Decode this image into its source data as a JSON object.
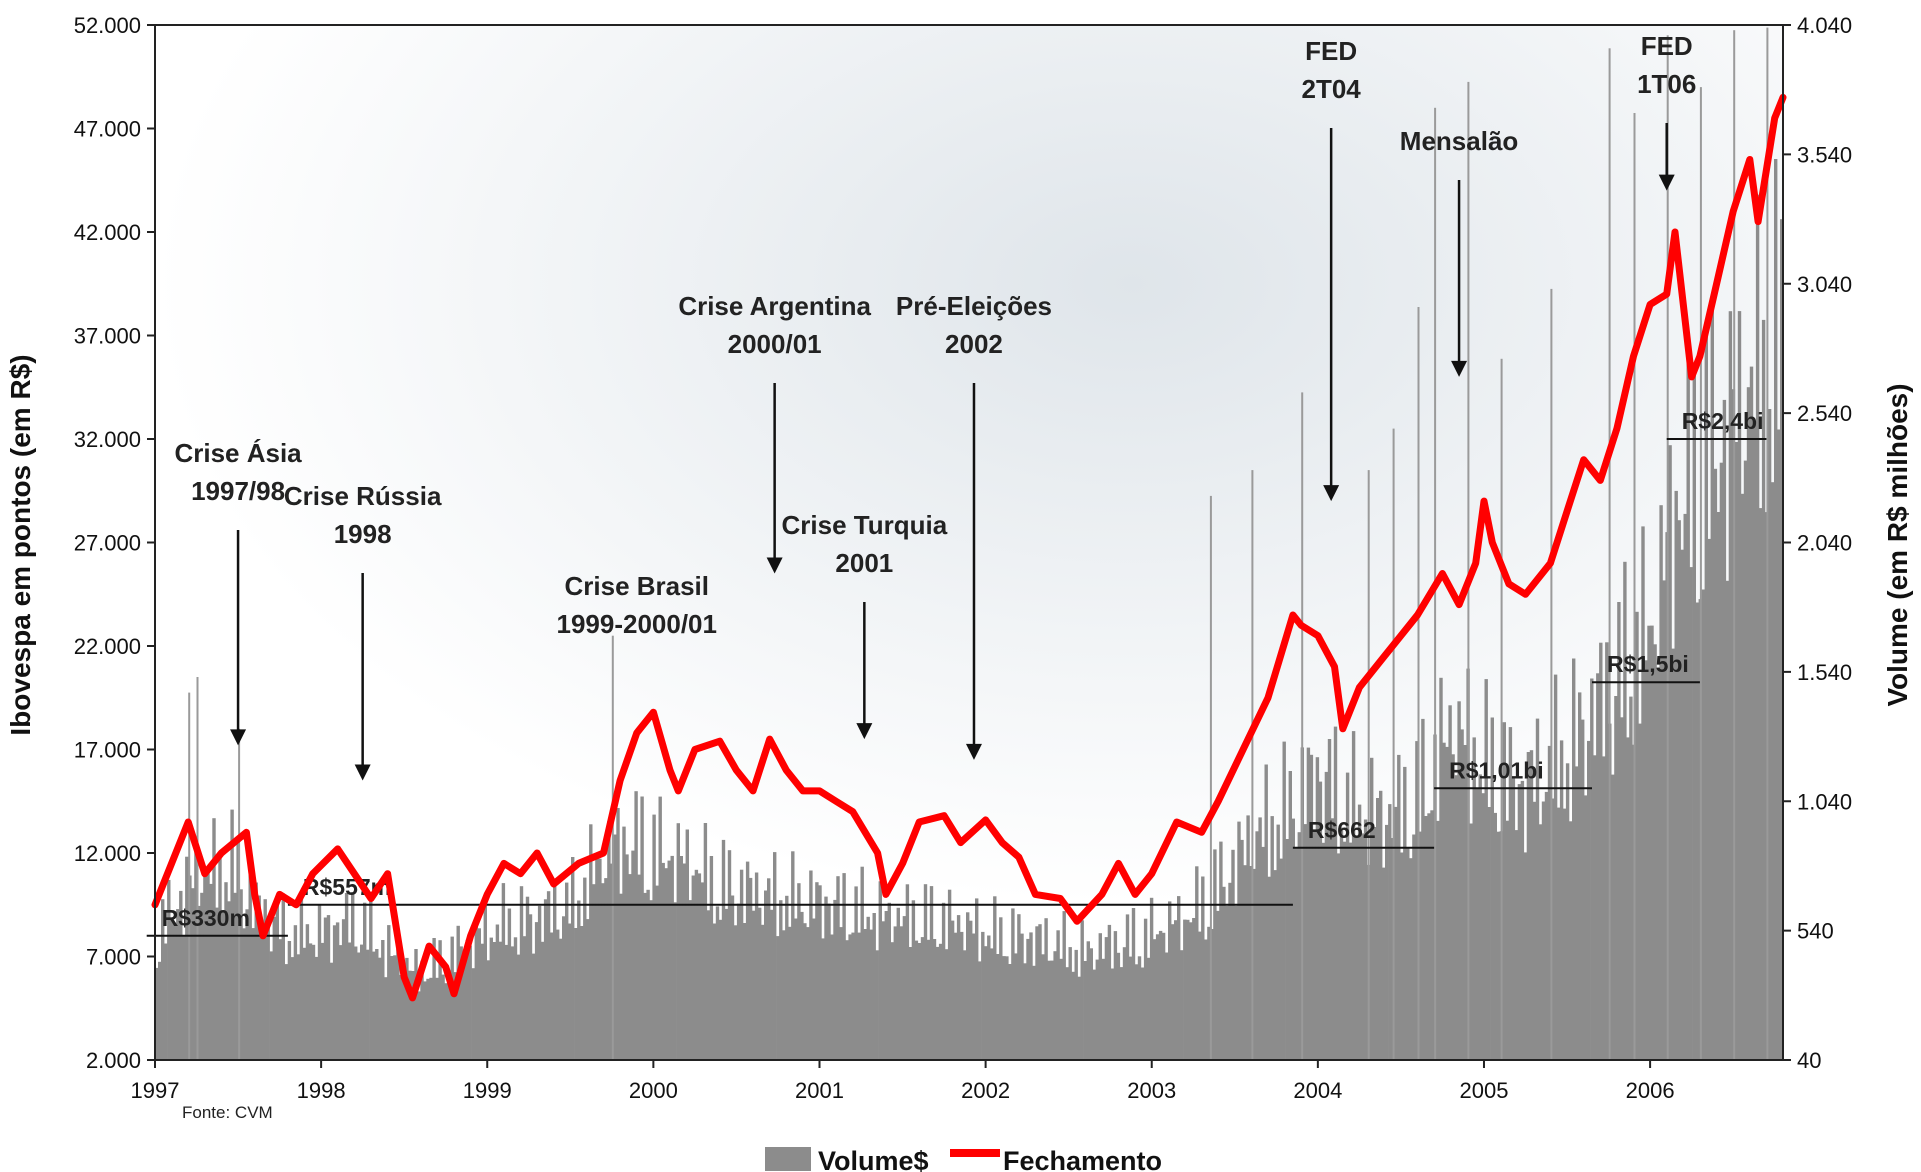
{
  "chart_data": {
    "type": "bar+line",
    "source_note": "Fonte: CVM",
    "y_left": {
      "label": "Ibovespa em pontos (em R$)",
      "ticks": [
        "52.000",
        "47.000",
        "42.000",
        "37.000",
        "32.000",
        "27.000",
        "22.000",
        "17.000",
        "12.000",
        "7.000",
        "2.000"
      ],
      "range": [
        2000,
        52000
      ]
    },
    "y_right": {
      "label": "Volume (em R$ milhões)",
      "ticks": [
        "4.040",
        "3.540",
        "3.040",
        "2.540",
        "2.040",
        "1.540",
        "1.040",
        "540",
        "40"
      ],
      "range": [
        40,
        4040
      ]
    },
    "x_ticks": [
      "1997",
      "1998",
      "1999",
      "2000",
      "2001",
      "2002",
      "2003",
      "2004",
      "2005",
      "2006"
    ],
    "x_range": [
      1997.0,
      2006.8
    ],
    "series": [
      {
        "name": "Volume$",
        "type": "bar",
        "axis": "right",
        "color": "#8c8c8c",
        "points": [
          [
            1997.0,
            550
          ],
          [
            1997.2,
            760
          ],
          [
            1997.45,
            850
          ],
          [
            1997.6,
            660
          ],
          [
            1997.8,
            560
          ],
          [
            1998.0,
            560
          ],
          [
            1998.2,
            620
          ],
          [
            1998.4,
            480
          ],
          [
            1998.55,
            400
          ],
          [
            1998.7,
            440
          ],
          [
            1998.9,
            520
          ],
          [
            1999.1,
            600
          ],
          [
            1999.3,
            620
          ],
          [
            1999.5,
            680
          ],
          [
            1999.7,
            880
          ],
          [
            1999.85,
            940
          ],
          [
            2000.0,
            900
          ],
          [
            2000.2,
            840
          ],
          [
            2000.4,
            760
          ],
          [
            2000.6,
            720
          ],
          [
            2000.8,
            700
          ],
          [
            2001.0,
            680
          ],
          [
            2001.2,
            660
          ],
          [
            2001.4,
            620
          ],
          [
            2001.6,
            620
          ],
          [
            2001.8,
            600
          ],
          [
            2002.0,
            560
          ],
          [
            2002.2,
            540
          ],
          [
            2002.4,
            520
          ],
          [
            2002.6,
            480
          ],
          [
            2002.8,
            520
          ],
          [
            2003.0,
            560
          ],
          [
            2003.2,
            620
          ],
          [
            2003.4,
            760
          ],
          [
            2003.6,
            940
          ],
          [
            2003.8,
            1060
          ],
          [
            2004.0,
            1200
          ],
          [
            2004.2,
            1080
          ],
          [
            2004.4,
            1020
          ],
          [
            2004.6,
            1120
          ],
          [
            2004.8,
            1400
          ],
          [
            2005.0,
            1260
          ],
          [
            2005.2,
            1140
          ],
          [
            2005.4,
            1240
          ],
          [
            2005.6,
            1400
          ],
          [
            2005.8,
            1620
          ],
          [
            2006.0,
            1800
          ],
          [
            2006.15,
            2300
          ],
          [
            2006.3,
            2500
          ],
          [
            2006.5,
            2650
          ],
          [
            2006.7,
            2900
          ],
          [
            2006.8,
            3000
          ]
        ],
        "spikes": [
          [
            1997.2,
            1460
          ],
          [
            1997.25,
            1520
          ],
          [
            1997.5,
            1320
          ],
          [
            1999.75,
            1680
          ],
          [
            2003.35,
            2220
          ],
          [
            2003.6,
            2320
          ],
          [
            2003.9,
            2620
          ],
          [
            2004.3,
            2320
          ],
          [
            2004.45,
            2480
          ],
          [
            2004.6,
            2950
          ],
          [
            2004.7,
            3720
          ],
          [
            2004.9,
            3820
          ],
          [
            2005.1,
            2750
          ],
          [
            2005.4,
            3020
          ],
          [
            2005.75,
            3950
          ],
          [
            2005.9,
            3700
          ],
          [
            2006.1,
            4000
          ],
          [
            2006.3,
            3800
          ],
          [
            2006.5,
            4020
          ],
          [
            2006.7,
            4030
          ]
        ]
      },
      {
        "name": "Fechamento",
        "type": "line",
        "axis": "left",
        "color": "#ff0000",
        "points": [
          [
            1997.0,
            9500
          ],
          [
            1997.1,
            11500
          ],
          [
            1997.2,
            13500
          ],
          [
            1997.3,
            11000
          ],
          [
            1997.4,
            12000
          ],
          [
            1997.55,
            13000
          ],
          [
            1997.6,
            10000
          ],
          [
            1997.65,
            8000
          ],
          [
            1997.75,
            10000
          ],
          [
            1997.85,
            9500
          ],
          [
            1997.95,
            11000
          ],
          [
            1998.1,
            12200
          ],
          [
            1998.3,
            9800
          ],
          [
            1998.4,
            11000
          ],
          [
            1998.5,
            6000
          ],
          [
            1998.55,
            5000
          ],
          [
            1998.65,
            7500
          ],
          [
            1998.75,
            6500
          ],
          [
            1998.8,
            5200
          ],
          [
            1998.9,
            8000
          ],
          [
            1999.0,
            10000
          ],
          [
            1999.1,
            11500
          ],
          [
            1999.2,
            11000
          ],
          [
            1999.3,
            12000
          ],
          [
            1999.4,
            10500
          ],
          [
            1999.55,
            11500
          ],
          [
            1999.7,
            12000
          ],
          [
            1999.8,
            15500
          ],
          [
            1999.9,
            17800
          ],
          [
            2000.0,
            18800
          ],
          [
            2000.1,
            16000
          ],
          [
            2000.15,
            15000
          ],
          [
            2000.25,
            17000
          ],
          [
            2000.4,
            17400
          ],
          [
            2000.5,
            16000
          ],
          [
            2000.6,
            15000
          ],
          [
            2000.7,
            17500
          ],
          [
            2000.8,
            16000
          ],
          [
            2000.9,
            15000
          ],
          [
            2001.0,
            15000
          ],
          [
            2001.1,
            14500
          ],
          [
            2001.2,
            14000
          ],
          [
            2001.35,
            12000
          ],
          [
            2001.4,
            10000
          ],
          [
            2001.5,
            11500
          ],
          [
            2001.6,
            13500
          ],
          [
            2001.75,
            13800
          ],
          [
            2001.85,
            12500
          ],
          [
            2002.0,
            13600
          ],
          [
            2002.1,
            12500
          ],
          [
            2002.2,
            11800
          ],
          [
            2002.3,
            10000
          ],
          [
            2002.45,
            9800
          ],
          [
            2002.55,
            8700
          ],
          [
            2002.7,
            10000
          ],
          [
            2002.8,
            11500
          ],
          [
            2002.9,
            10000
          ],
          [
            2003.0,
            11000
          ],
          [
            2003.15,
            13500
          ],
          [
            2003.3,
            13000
          ],
          [
            2003.4,
            14500
          ],
          [
            2003.55,
            17000
          ],
          [
            2003.7,
            19500
          ],
          [
            2003.85,
            23500
          ],
          [
            2003.9,
            23000
          ],
          [
            2004.0,
            22500
          ],
          [
            2004.1,
            21000
          ],
          [
            2004.15,
            18000
          ],
          [
            2004.25,
            20000
          ],
          [
            2004.4,
            21500
          ],
          [
            2004.5,
            22500
          ],
          [
            2004.6,
            23500
          ],
          [
            2004.75,
            25500
          ],
          [
            2004.85,
            24000
          ],
          [
            2004.95,
            26000
          ],
          [
            2005.0,
            29000
          ],
          [
            2005.05,
            27000
          ],
          [
            2005.15,
            25000
          ],
          [
            2005.25,
            24500
          ],
          [
            2005.4,
            26000
          ],
          [
            2005.5,
            28500
          ],
          [
            2005.6,
            31000
          ],
          [
            2005.7,
            30000
          ],
          [
            2005.8,
            32500
          ],
          [
            2005.9,
            36000
          ],
          [
            2006.0,
            38500
          ],
          [
            2006.1,
            39000
          ],
          [
            2006.15,
            42000
          ],
          [
            2006.2,
            38500
          ],
          [
            2006.25,
            35000
          ],
          [
            2006.3,
            36000
          ],
          [
            2006.4,
            39500
          ],
          [
            2006.5,
            43000
          ],
          [
            2006.6,
            45500
          ],
          [
            2006.65,
            42500
          ],
          [
            2006.7,
            45000
          ],
          [
            2006.75,
            47500
          ],
          [
            2006.8,
            48500
          ]
        ]
      }
    ],
    "annotations": [
      {
        "lines": [
          "Crise Ásia",
          "1997/98"
        ],
        "x": 1997.5,
        "arrow_y": 17200
      },
      {
        "lines": [
          "Crise Rússia",
          "1998"
        ],
        "x": 1998.25,
        "arrow_y": 15500
      },
      {
        "lines": [
          "Crise Brasil",
          "1999-2000/01"
        ],
        "x": 1999.9,
        "arrow_y": null
      },
      {
        "lines": [
          "Crise Argentina",
          "2000/01"
        ],
        "x": 2000.73,
        "arrow_y": 25500
      },
      {
        "lines": [
          "Crise Turquia",
          "2001"
        ],
        "x": 2001.27,
        "arrow_y": 17500
      },
      {
        "lines": [
          "Pré-Eleições",
          "2002"
        ],
        "x": 2001.93,
        "arrow_y": 16500
      },
      {
        "lines": [
          "FED",
          "2T04"
        ],
        "x": 2004.08,
        "arrow_y": 29000
      },
      {
        "lines": [
          "Mensalão"
        ],
        "x": 2004.85,
        "arrow_y": 35000
      },
      {
        "lines": [
          "FED",
          "1T06"
        ],
        "x": 2006.1,
        "arrow_y": 44000
      }
    ],
    "average_volume_lines": [
      {
        "label": "R$330m",
        "x0": 1996.95,
        "x1": 1997.8,
        "y": 520
      },
      {
        "label": "R$557m",
        "x0": 1997.8,
        "x1": 2003.85,
        "y": 640
      },
      {
        "label": "R$662",
        "x0": 2003.85,
        "x1": 2004.7,
        "y": 860
      },
      {
        "label": "R$1,01bi",
        "x0": 2004.7,
        "x1": 2005.65,
        "y": 1090
      },
      {
        "label": "R$1,5bi",
        "x0": 2005.65,
        "x1": 2006.3,
        "y": 1500
      },
      {
        "label": "R$2,4bi",
        "x0": 2006.1,
        "x1": 2006.7,
        "y": 2440
      }
    ],
    "legend": {
      "placement": "bottom-center",
      "items": [
        "Volume$",
        "Fechamento"
      ]
    }
  }
}
